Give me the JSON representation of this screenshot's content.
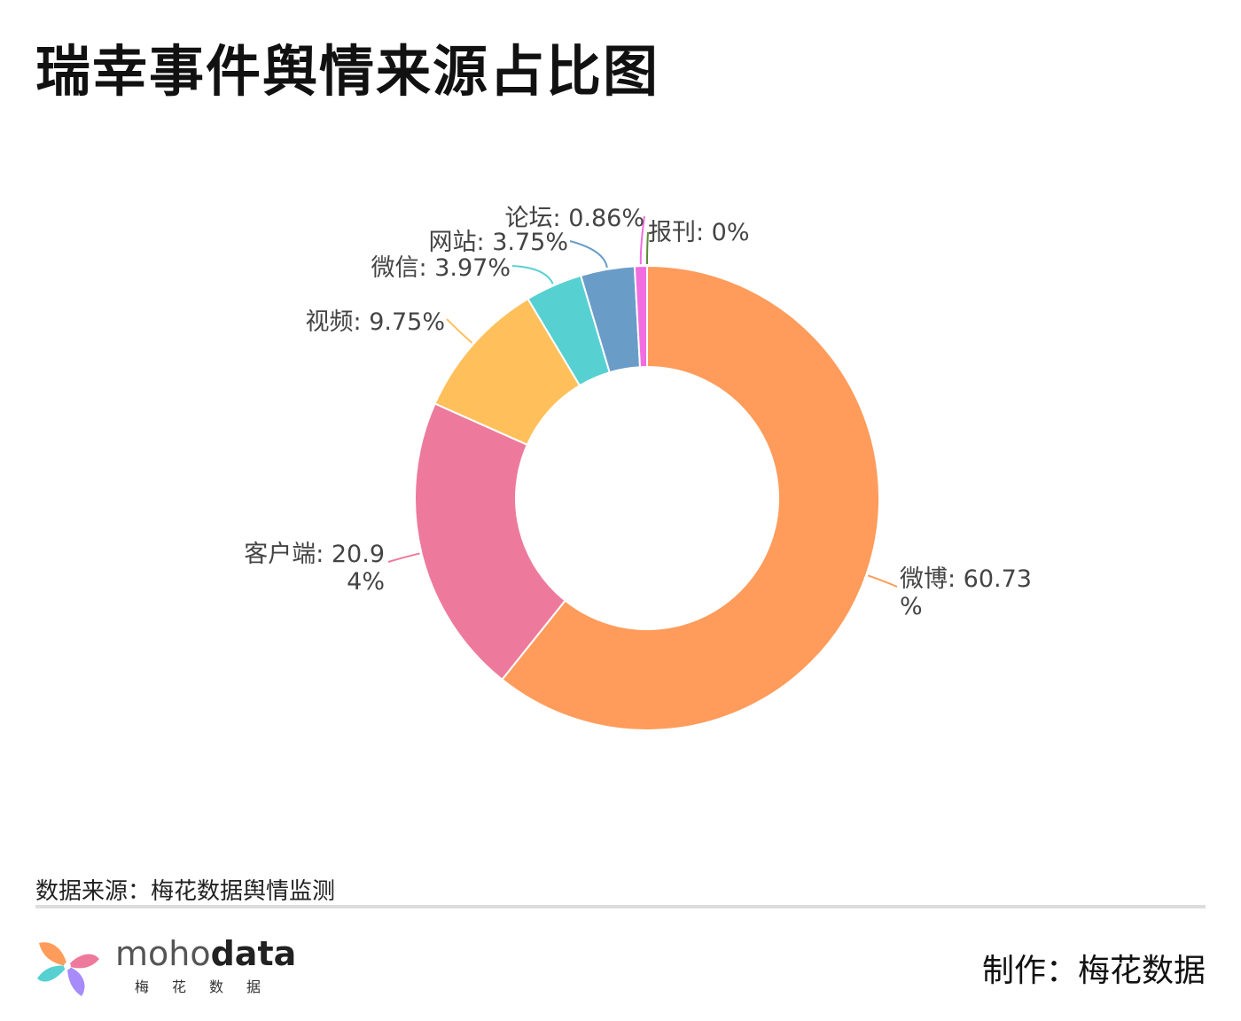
{
  "title": "瑞幸事件舆情来源占比图",
  "chart_data": {
    "type": "pie",
    "title": "瑞幸事件舆情来源占比图",
    "donut": true,
    "legend": "none",
    "slices": [
      {
        "name": "微博",
        "label": "微博: 60.73%",
        "value": 60.73,
        "color": "#ff9c5b"
      },
      {
        "name": "客户端",
        "label": "客户端: 20.94%",
        "value": 20.94,
        "color": "#ed7a9c"
      },
      {
        "name": "视频",
        "label": "视频: 9.75%",
        "value": 9.75,
        "color": "#ffc05c"
      },
      {
        "name": "微信",
        "label": "微信: 3.97%",
        "value": 3.97,
        "color": "#57d0d2"
      },
      {
        "name": "网站",
        "label": "网站: 3.75%",
        "value": 3.75,
        "color": "#6a9cc8"
      },
      {
        "name": "论坛",
        "label": "论坛: 0.86%",
        "value": 0.86,
        "color": "#f26ee0"
      },
      {
        "name": "报刊",
        "label": "报刊: 0%",
        "value": 0,
        "color": "#5a8a3a"
      }
    ]
  },
  "footer": {
    "source": "数据来源：梅花数据舆情监测",
    "producer": "制作：梅花数据",
    "brand_light": "moho",
    "brand_bold": "data",
    "brand_sub": "梅花数据"
  }
}
